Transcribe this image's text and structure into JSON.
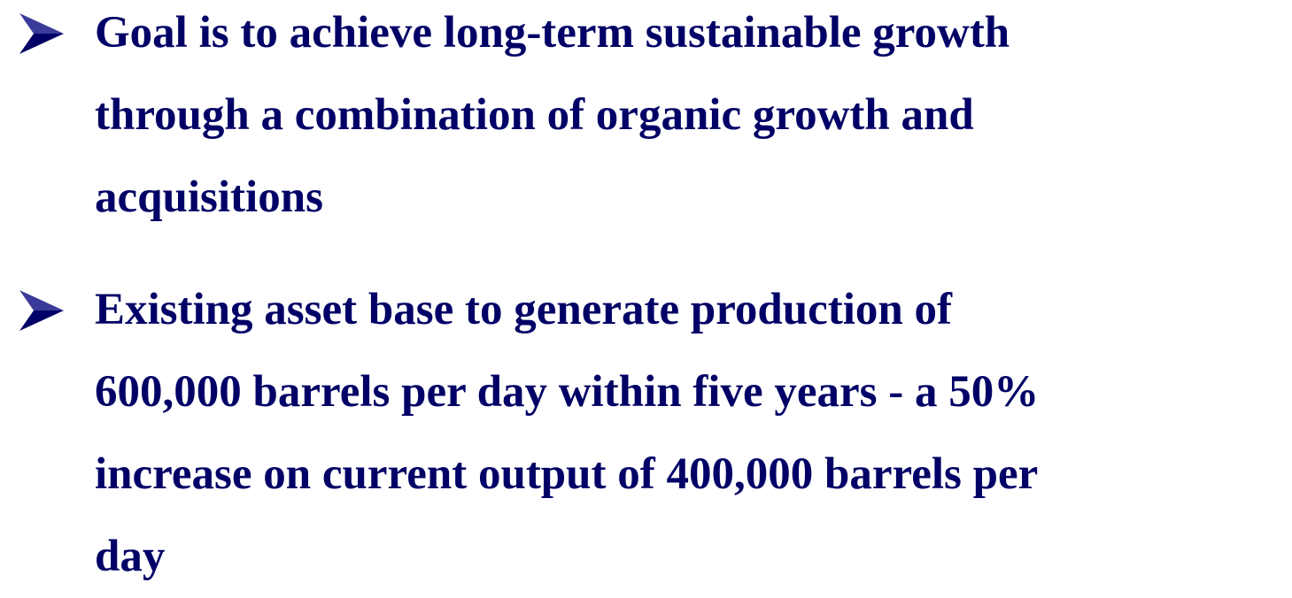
{
  "bullets": [
    {
      "lines": [
        "Goal is to achieve long-term sustainable growth",
        "through a combination of organic growth and",
        "acquisitions"
      ]
    },
    {
      "lines": [
        "Existing asset base to generate production of",
        "600,000 barrels per day within five years - a 50%",
        "increase on current output of 400,000 barrels per",
        "day"
      ]
    }
  ]
}
